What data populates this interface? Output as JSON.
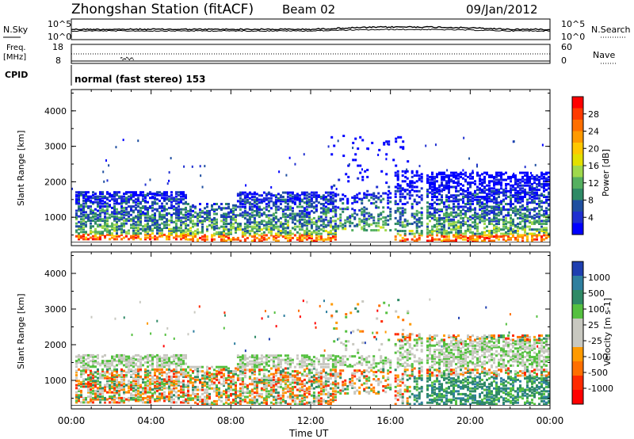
{
  "header": {
    "station": "Zhongshan Station (fitACF)",
    "beam": "Beam 02",
    "date": "09/Jan/2012"
  },
  "top_panel": {
    "left_label": "N.Sky",
    "right_label": "N.Search",
    "left_ticks": [
      "10^5",
      "10^0"
    ],
    "right_ticks": [
      "10^5",
      "10^0"
    ]
  },
  "freq_panel": {
    "left_label_line1": "Freq.",
    "left_label_line2": "[MHz]",
    "right_label": "Nave",
    "left_ticks": [
      "18",
      "8"
    ],
    "right_ticks": [
      "60",
      "0"
    ]
  },
  "cpid": {
    "label": "CPID",
    "value": "normal (fast stereo) 153"
  },
  "chart_data": [
    {
      "type": "heatmap",
      "title": "",
      "ylabel": "Slant Range [km]",
      "xlabel": "",
      "x_ticks": [
        "00:00",
        "04:00",
        "08:00",
        "12:00",
        "16:00",
        "20:00",
        "00:00"
      ],
      "y_ticks": [
        "1000",
        "2000",
        "3000",
        "4000"
      ],
      "ylim": [
        200,
        4600
      ],
      "colorbar": {
        "label": "Power [dB]",
        "ticks": [
          "28",
          "24",
          "20",
          "16",
          "12",
          "8",
          "4"
        ],
        "colors": [
          "#ff0000",
          "#ff3a00",
          "#ff6f00",
          "#ff9a00",
          "#ffc800",
          "#e3e000",
          "#9fd94c",
          "#55b060",
          "#2f8a66",
          "#1f4fa0",
          "#1f2fd0",
          "#0000ff"
        ]
      },
      "description_bands": [
        {
          "t0": 0.0,
          "t1": 5.8,
          "r0": 300,
          "r1": 1650
        },
        {
          "t0": 5.8,
          "t1": 13.0,
          "r0": 300,
          "r1": 1650
        },
        {
          "t0": 14.0,
          "t1": 17.5,
          "r0": 400,
          "r1": 2000
        },
        {
          "t0": 17.5,
          "t1": 24.0,
          "r0": 300,
          "r1": 2200
        }
      ]
    },
    {
      "type": "heatmap",
      "title": "",
      "ylabel": "Slant Range [km]",
      "xlabel": "Time UT",
      "x_ticks": [
        "00:00",
        "04:00",
        "08:00",
        "12:00",
        "16:00",
        "20:00",
        "00:00"
      ],
      "y_ticks": [
        "1000",
        "2000",
        "3000",
        "4000"
      ],
      "ylim": [
        200,
        4600
      ],
      "colorbar": {
        "label": "Velocity [m s-1]",
        "ticks": [
          "1000",
          "500",
          "100",
          "25",
          "-25",
          "-100",
          "-500",
          "-1000"
        ],
        "colors": [
          "#1f3fb0",
          "#2f7f9f",
          "#2f8a66",
          "#55c040",
          "#c8c8c0",
          "#c8c8c0",
          "#ff9a00",
          "#ff6f00",
          "#ff2a00",
          "#ff0000"
        ]
      }
    }
  ]
}
